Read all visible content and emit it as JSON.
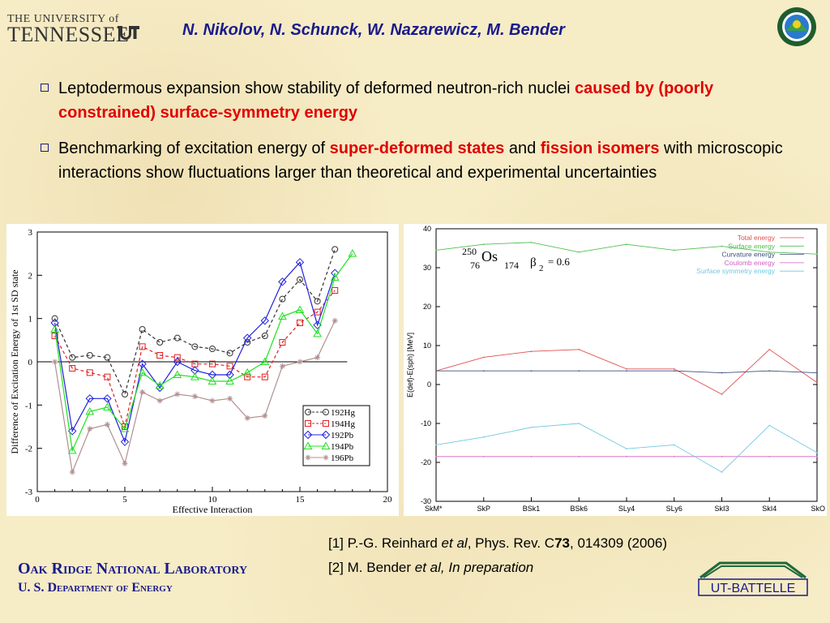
{
  "header": {
    "university_line1": "THE UNIVERSITY of",
    "university_line2": "TENNESSEE",
    "authors": "N. Nikolov, N. Schunck, W. Nazarewicz, M. Bender"
  },
  "bullets": [
    {
      "plain": "Leptodermous expansion show stability of deformed neutron-rich nuclei ",
      "highlight": "caused by (poorly constrained) surface-symmetry energy"
    },
    {
      "part1": "Benchmarking of excitation energy of ",
      "hl1": "super-deformed states",
      "part2": " and ",
      "hl2": "fission isomers",
      "part3": " with microscopic interactions show fluctuations larger than theoretical and experimental uncertainties"
    }
  ],
  "references": {
    "ref1_a": "[1] P.-G. Reinhard ",
    "ref1_b": "et al",
    "ref1_c": ", Phys. Rev. C",
    "ref1_d": "73",
    "ref1_e": ", 014309 (2006)",
    "ref2_a": "[2] M. Bender ",
    "ref2_b": "et al, In preparation"
  },
  "footer": {
    "ornl_line1": "Oak Ridge National Laboratory",
    "ornl_line2": "U. S. Department of Energy",
    "battelle": "UT-BATTELLE"
  },
  "colors": {
    "title_blue": "#1a1a8c",
    "highlight_red": "#e00000"
  },
  "icons": {
    "doe_seal": "doe-seal-icon",
    "ut_logo": "ut-logo-icon",
    "battelle_logo": "battelle-logo-icon"
  },
  "chart_data": [
    {
      "type": "line",
      "xlabel": "Effective Interaction",
      "ylabel": "Difference of Excitation Energy of 1st SD state",
      "xlim": [
        0,
        20
      ],
      "ylim": [
        -3,
        3
      ],
      "xticks": [
        0,
        5,
        10,
        15,
        20
      ],
      "yticks": [
        -3,
        -2,
        -1,
        0,
        1,
        2,
        3
      ],
      "legend_position": "bottom-right",
      "zero_line": true,
      "series": [
        {
          "name": "192Hg",
          "color": "#333333",
          "marker": "circle",
          "dashed": true,
          "x": [
            1,
            2,
            3,
            4,
            5,
            6,
            7,
            8,
            9,
            10,
            11,
            12,
            13,
            14,
            15,
            16,
            17
          ],
          "y": [
            1.0,
            0.1,
            0.15,
            0.1,
            -0.75,
            0.75,
            0.45,
            0.55,
            0.35,
            0.3,
            0.2,
            0.45,
            0.6,
            1.45,
            1.9,
            1.4,
            2.6
          ]
        },
        {
          "name": "194Hg",
          "color": "#e02020",
          "marker": "square",
          "dashed": true,
          "x": [
            1,
            2,
            3,
            4,
            5,
            6,
            7,
            8,
            9,
            10,
            11,
            12,
            13,
            14,
            15,
            16,
            17
          ],
          "y": [
            0.6,
            -0.15,
            -0.25,
            -0.35,
            -1.5,
            0.35,
            0.15,
            0.1,
            -0.05,
            -0.05,
            -0.1,
            -0.35,
            -0.35,
            0.45,
            0.9,
            1.15,
            1.65
          ]
        },
        {
          "name": "192Pb",
          "color": "#2020e0",
          "marker": "diamond",
          "dashed": false,
          "x": [
            1,
            2,
            3,
            4,
            5,
            6,
            7,
            8,
            9,
            10,
            11,
            12,
            13,
            14,
            15,
            16,
            17
          ],
          "y": [
            0.9,
            -1.6,
            -0.85,
            -0.85,
            -1.85,
            -0.05,
            -0.6,
            0.0,
            -0.2,
            -0.3,
            -0.3,
            0.55,
            0.95,
            1.85,
            2.3,
            0.85,
            2.05
          ]
        },
        {
          "name": "194Pb",
          "color": "#20e020",
          "marker": "triangle",
          "dashed": false,
          "x": [
            1,
            2,
            3,
            4,
            5,
            6,
            7,
            8,
            9,
            10,
            11,
            12,
            13,
            14,
            15,
            16,
            17,
            18
          ],
          "y": [
            0.75,
            -2.05,
            -1.15,
            -1.05,
            -1.55,
            -0.25,
            -0.55,
            -0.3,
            -0.35,
            -0.45,
            -0.45,
            -0.25,
            0.0,
            1.05,
            1.2,
            0.65,
            1.95,
            2.5
          ]
        },
        {
          "name": "196Pb",
          "color": "#b09090",
          "marker": "star",
          "dashed": false,
          "x": [
            1,
            2,
            3,
            4,
            5,
            6,
            7,
            8,
            9,
            10,
            11,
            12,
            13,
            14,
            15,
            16,
            17
          ],
          "y": [
            0.0,
            -2.55,
            -1.55,
            -1.45,
            -2.35,
            -0.7,
            -0.9,
            -0.75,
            -0.8,
            -0.9,
            -0.85,
            -1.3,
            -1.25,
            -0.1,
            0.0,
            0.1,
            0.95
          ]
        }
      ]
    },
    {
      "type": "line",
      "ylabel": "E(def)-E(sph) [MeV]",
      "ylim": [
        -30,
        40
      ],
      "yticks": [
        -30,
        -20,
        -10,
        0,
        10,
        20,
        30,
        40
      ],
      "categories": [
        "SkM*",
        "SkP",
        "BSk1",
        "BSk6",
        "SLy4",
        "SLy6",
        "SkI3",
        "SkI4",
        "SkO"
      ],
      "legend_position": "top-right",
      "annotation": {
        "mass": "250",
        "element": "Os",
        "proton": "76",
        "neutron": "174",
        "beta": "β",
        "beta_sub": "2",
        "value": "= 0.6"
      },
      "series": [
        {
          "name": "Total energy",
          "color": "#e05050",
          "values": [
            3.5,
            7.0,
            8.5,
            9.0,
            4.0,
            4.0,
            -2.5,
            9.0,
            0.5
          ]
        },
        {
          "name": "Surface energy",
          "color": "#50c050",
          "values": [
            34.5,
            36.0,
            36.5,
            34.0,
            36.0,
            34.5,
            35.5,
            34.0,
            33.5
          ]
        },
        {
          "name": "Curvature energy",
          "color": "#405080",
          "values": [
            3.5,
            3.5,
            3.5,
            3.5,
            3.5,
            3.5,
            3.0,
            3.5,
            3.0
          ]
        },
        {
          "name": "Coulomb energy",
          "color": "#d060c0",
          "values": [
            -18.5,
            -18.5,
            -18.5,
            -18.5,
            -18.5,
            -18.5,
            -18.5,
            -18.5,
            -18.5
          ]
        },
        {
          "name": "Surface symmetry energy",
          "color": "#70c8e0",
          "values": [
            -15.5,
            -13.5,
            -11.0,
            -10.0,
            -16.5,
            -15.5,
            -22.5,
            -10.5,
            -17.5
          ]
        }
      ]
    }
  ]
}
